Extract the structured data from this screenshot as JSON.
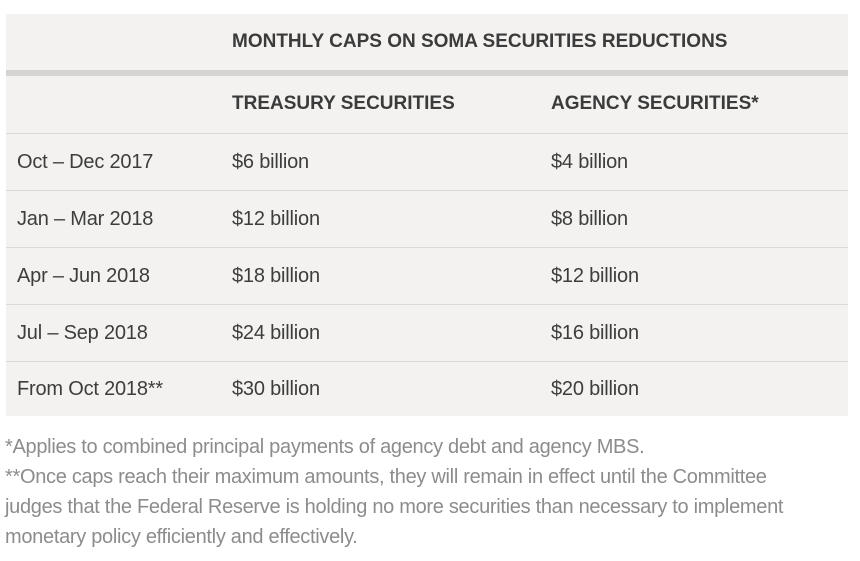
{
  "table": {
    "title": "MONTHLY CAPS ON SOMA SECURITIES REDUCTIONS",
    "columns": [
      "",
      "TREASURY SECURITIES",
      "AGENCY SECURITIES*"
    ],
    "rows": [
      {
        "period": "Oct – Dec 2017",
        "treasury": "$6 billion",
        "agency": "$4 billion"
      },
      {
        "period": "Jan – Mar 2018",
        "treasury": "$12 billion",
        "agency": "$8 billion"
      },
      {
        "period": "Apr – Jun 2018",
        "treasury": "$18 billion",
        "agency": "$12 billion"
      },
      {
        "period": "Jul – Sep 2018",
        "treasury": "$24 billion",
        "agency": "$16 billion"
      },
      {
        "period": "From Oct 2018**",
        "treasury": "$30 billion",
        "agency": "$20 billion"
      }
    ]
  },
  "footnotes": {
    "line1": "*Applies to combined principal payments of agency debt and agency MBS.",
    "line2": "**Once caps reach their maximum amounts, they will remain in effect until the Committee",
    "line3": "judges that the Federal Reserve is holding no more securities than necessary to implement",
    "line4": "monetary policy efficiently and effectively."
  },
  "colors": {
    "table_background": "#f3f2f0",
    "table_text": "#3d3d3d",
    "footnote_text": "#8c8c8c",
    "divider": "#dcdad6"
  }
}
